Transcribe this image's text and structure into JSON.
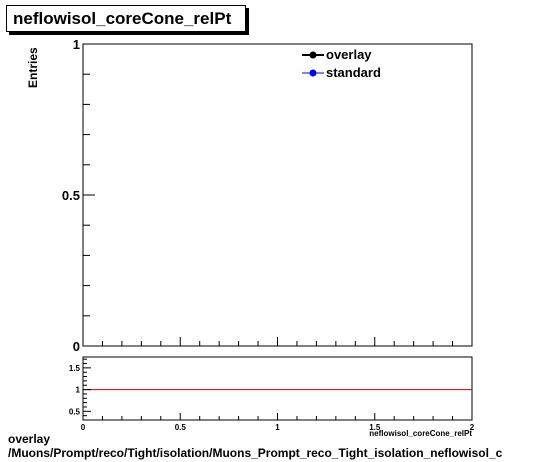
{
  "title": "neflowisol_coreCone_relPt",
  "footer": {
    "line1": "overlay",
    "line2": "/Muons/Prompt/reco/Tight/isolation/Muons_Prompt_reco_Tight_isolation_neflowisol_c"
  },
  "chart_data": [
    {
      "type": "line",
      "ylabel": "Entries",
      "xlim": [
        0,
        2
      ],
      "ylim": [
        0,
        1
      ],
      "y_tick_labels": [
        "0",
        "0.5",
        "1"
      ],
      "series": [
        {
          "name": "overlay",
          "color": "#000000",
          "values": []
        },
        {
          "name": "standard",
          "color": "#0000ff",
          "values": []
        }
      ],
      "legend": "top-right",
      "grid": false
    },
    {
      "type": "line",
      "xlabel": "neflowisol_coreCone_relPt",
      "xlim": [
        0,
        2
      ],
      "ylim": [
        0.3,
        1.75
      ],
      "x_tick_labels": [
        "0",
        "0.5",
        "1",
        "1.5",
        "2"
      ],
      "y_tick_labels": [
        "0.5",
        "1",
        "1.5"
      ],
      "reference_line": {
        "y": 1,
        "color": "#cc0000"
      },
      "grid": false
    }
  ]
}
